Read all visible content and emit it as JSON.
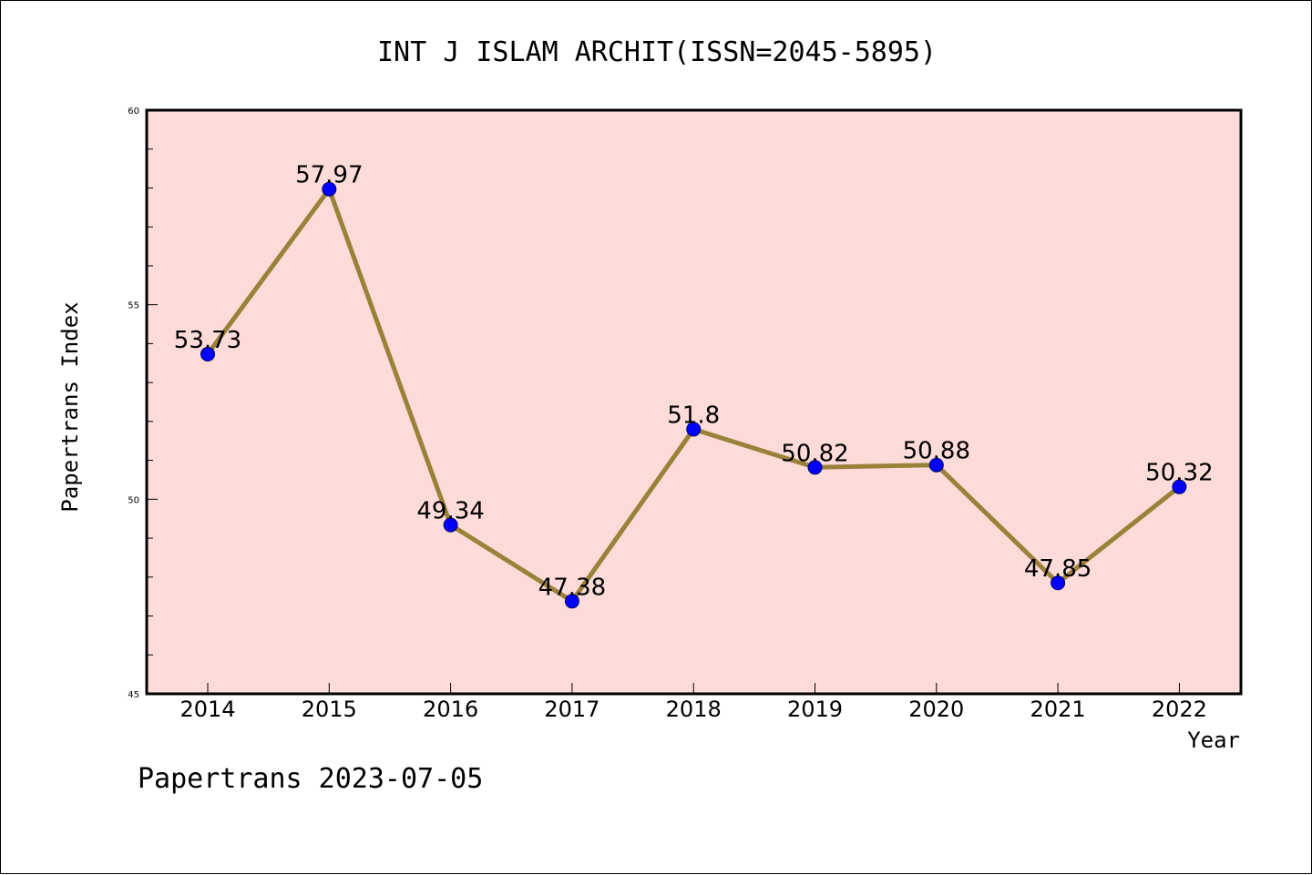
{
  "chart_data": {
    "type": "line",
    "title": "INT J ISLAM ARCHIT(ISSN=2045-5895)",
    "xlabel": "Year",
    "ylabel": "Papertrans Index",
    "footer": "Papertrans 2023-07-05",
    "categories": [
      "2014",
      "2015",
      "2016",
      "2017",
      "2018",
      "2019",
      "2020",
      "2021",
      "2022"
    ],
    "values": [
      53.73,
      57.97,
      49.34,
      47.38,
      51.8,
      50.82,
      50.88,
      47.85,
      50.32
    ],
    "data_labels": [
      "53.73",
      "57.97",
      "49.34",
      "47.38",
      "51.8",
      "50.82",
      "50.88",
      "47.85",
      "50.32"
    ],
    "ylim": [
      45,
      60
    ],
    "yticks": [
      "45",
      "50",
      "55",
      "60"
    ],
    "grid": false,
    "colors": {
      "plot_background": "#fddbd8",
      "line": "#9b8039",
      "marker": "#0000ff"
    }
  }
}
